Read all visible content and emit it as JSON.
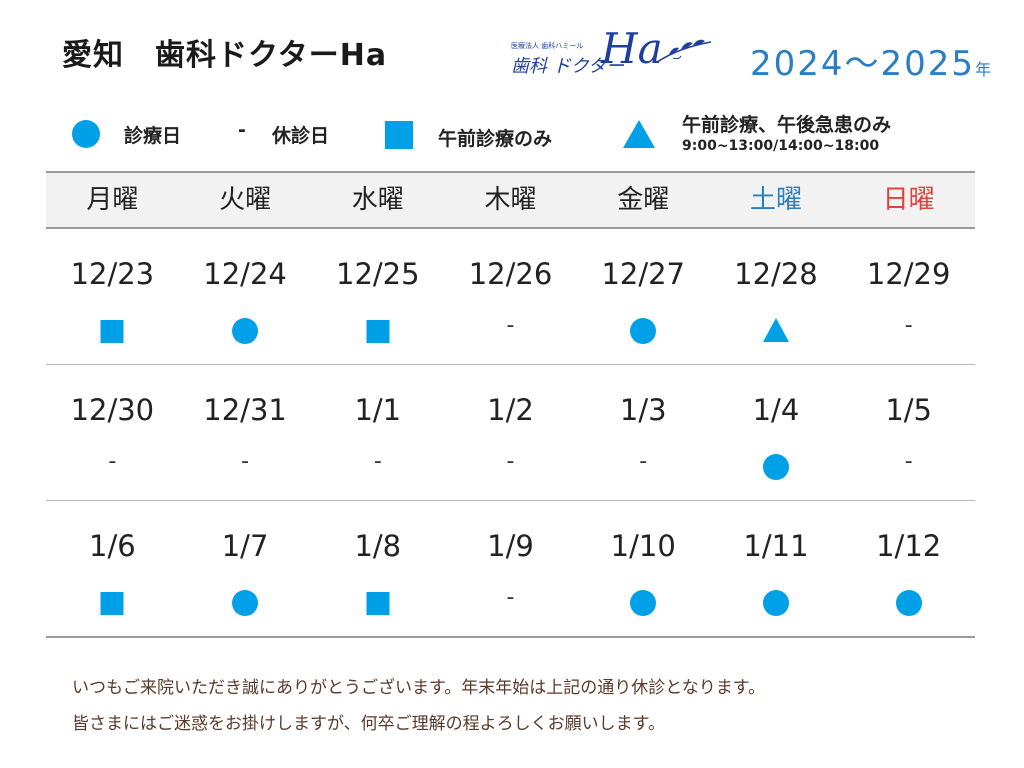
{
  "header": {
    "title": "愛知　歯科ドクターHa",
    "logo": {
      "sub": "医療法人 歯科ハミール",
      "main": "歯科 ドクター",
      "ha": "Ha"
    },
    "year": "2024～2025",
    "year_suffix": "年"
  },
  "legend": {
    "open": "診療日",
    "closed_symbol": "-",
    "closed": "休診日",
    "am_only": "午前診療のみ",
    "am_emergency": "午前診療、午後急患のみ",
    "hours": "9:00~13:00/14:00~18:00"
  },
  "colors": {
    "mark": "#00a0e9",
    "saturday": "#2a7fc4",
    "sunday": "#e0423e"
  },
  "days": [
    "月曜",
    "火曜",
    "水曜",
    "木曜",
    "金曜",
    "土曜",
    "日曜"
  ],
  "weeks": [
    [
      {
        "date": "12/23",
        "mark": "square"
      },
      {
        "date": "12/24",
        "mark": "circle"
      },
      {
        "date": "12/25",
        "mark": "square"
      },
      {
        "date": "12/26",
        "mark": "-"
      },
      {
        "date": "12/27",
        "mark": "circle"
      },
      {
        "date": "12/28",
        "mark": "triangle"
      },
      {
        "date": "12/29",
        "mark": "-"
      }
    ],
    [
      {
        "date": "12/30",
        "mark": "-"
      },
      {
        "date": "12/31",
        "mark": "-"
      },
      {
        "date": "1/1",
        "mark": "-"
      },
      {
        "date": "1/2",
        "mark": "-"
      },
      {
        "date": "1/3",
        "mark": "-"
      },
      {
        "date": "1/4",
        "mark": "circle"
      },
      {
        "date": "1/5",
        "mark": "-"
      }
    ],
    [
      {
        "date": "1/6",
        "mark": "square"
      },
      {
        "date": "1/7",
        "mark": "circle"
      },
      {
        "date": "1/8",
        "mark": "square"
      },
      {
        "date": "1/9",
        "mark": "-"
      },
      {
        "date": "1/10",
        "mark": "circle"
      },
      {
        "date": "1/11",
        "mark": "circle"
      },
      {
        "date": "1/12",
        "mark": "circle"
      }
    ]
  ],
  "footer": {
    "line1": "いつもご来院いただき誠にありがとうございます。年末年始は上記の通り休診となります。",
    "line2": "皆さまにはご迷惑をお掛けしますが、何卒ご理解の程よろしくお願いします。"
  }
}
